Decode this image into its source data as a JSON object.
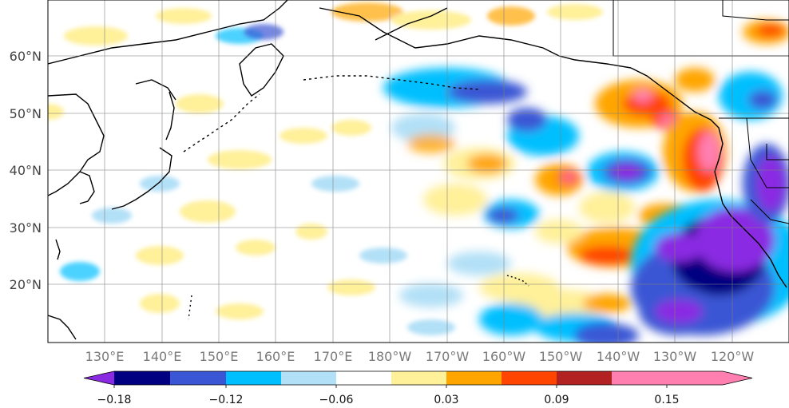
{
  "map": {
    "lat_ticks": [
      "60°N",
      "50°N",
      "40°N",
      "30°N",
      "20°N"
    ],
    "lon_ticks": [
      "130°E",
      "140°E",
      "150°E",
      "160°E",
      "170°E",
      "180°W",
      "170°W",
      "160°W",
      "150°W",
      "140°W",
      "130°W",
      "120°W"
    ]
  },
  "colorbar": {
    "colors": [
      "#8a2be2",
      "#000080",
      "#3a56d4",
      "#00bfff",
      "#b2e0f7",
      "#ffffff",
      "#fff09a",
      "#ffa500",
      "#ff4500",
      "#b22222",
      "#ff7fb0"
    ],
    "extend": "both",
    "tick_labels": [
      "−0.18",
      "−0.12",
      "−0.06",
      "0.03",
      "0.09",
      "0.15"
    ]
  }
}
